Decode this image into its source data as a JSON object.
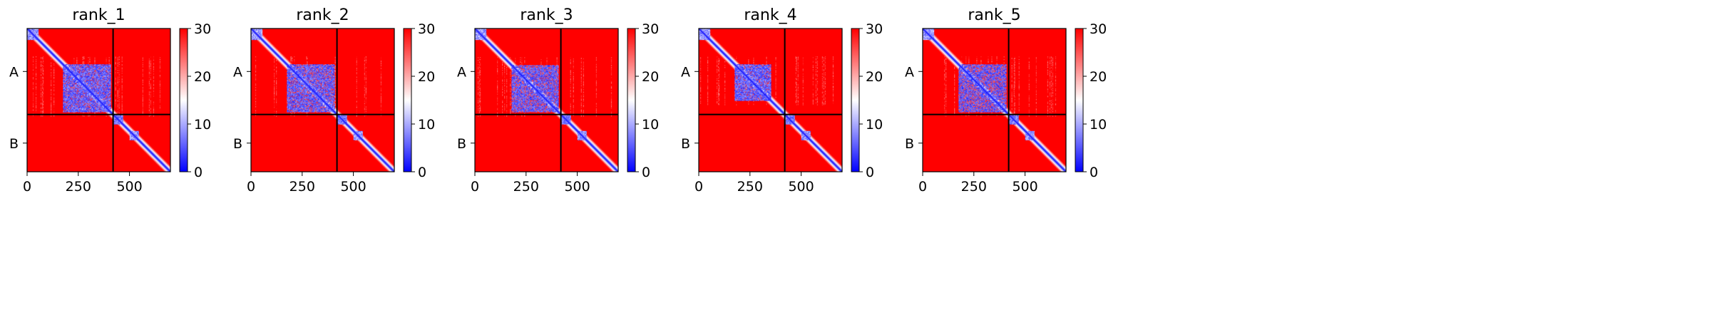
{
  "chart_data": {
    "type": "heatmap",
    "colormap": {
      "name": "bwr",
      "low_color": "#0000ff",
      "mid_color": "#ffffff",
      "high_color": "#ff0000",
      "vmin": 0,
      "vmax": 30
    },
    "x_ticks": [
      0,
      250,
      500
    ],
    "x_tick_labels": [
      "0",
      "250",
      "500"
    ],
    "xlim": [
      0,
      700
    ],
    "y_tick_labels": [
      "A",
      "B"
    ],
    "colorbar_ticks": [
      0,
      10,
      20,
      30
    ],
    "colorbar_tick_labels": [
      "0",
      "10",
      "20",
      "30"
    ],
    "chain_boundary": 420,
    "sequence_length": 700,
    "panels": [
      {
        "title": "rank_1",
        "domain": [
          175,
          410
        ],
        "density": 0.85
      },
      {
        "title": "rank_2",
        "domain": [
          175,
          410
        ],
        "density": 0.8
      },
      {
        "title": "rank_3",
        "domain": [
          180,
          410
        ],
        "density": 0.75
      },
      {
        "title": "rank_4",
        "domain": [
          175,
          355
        ],
        "density": 0.85
      },
      {
        "title": "rank_5",
        "domain": [
          175,
          410
        ],
        "density": 0.7
      }
    ]
  }
}
